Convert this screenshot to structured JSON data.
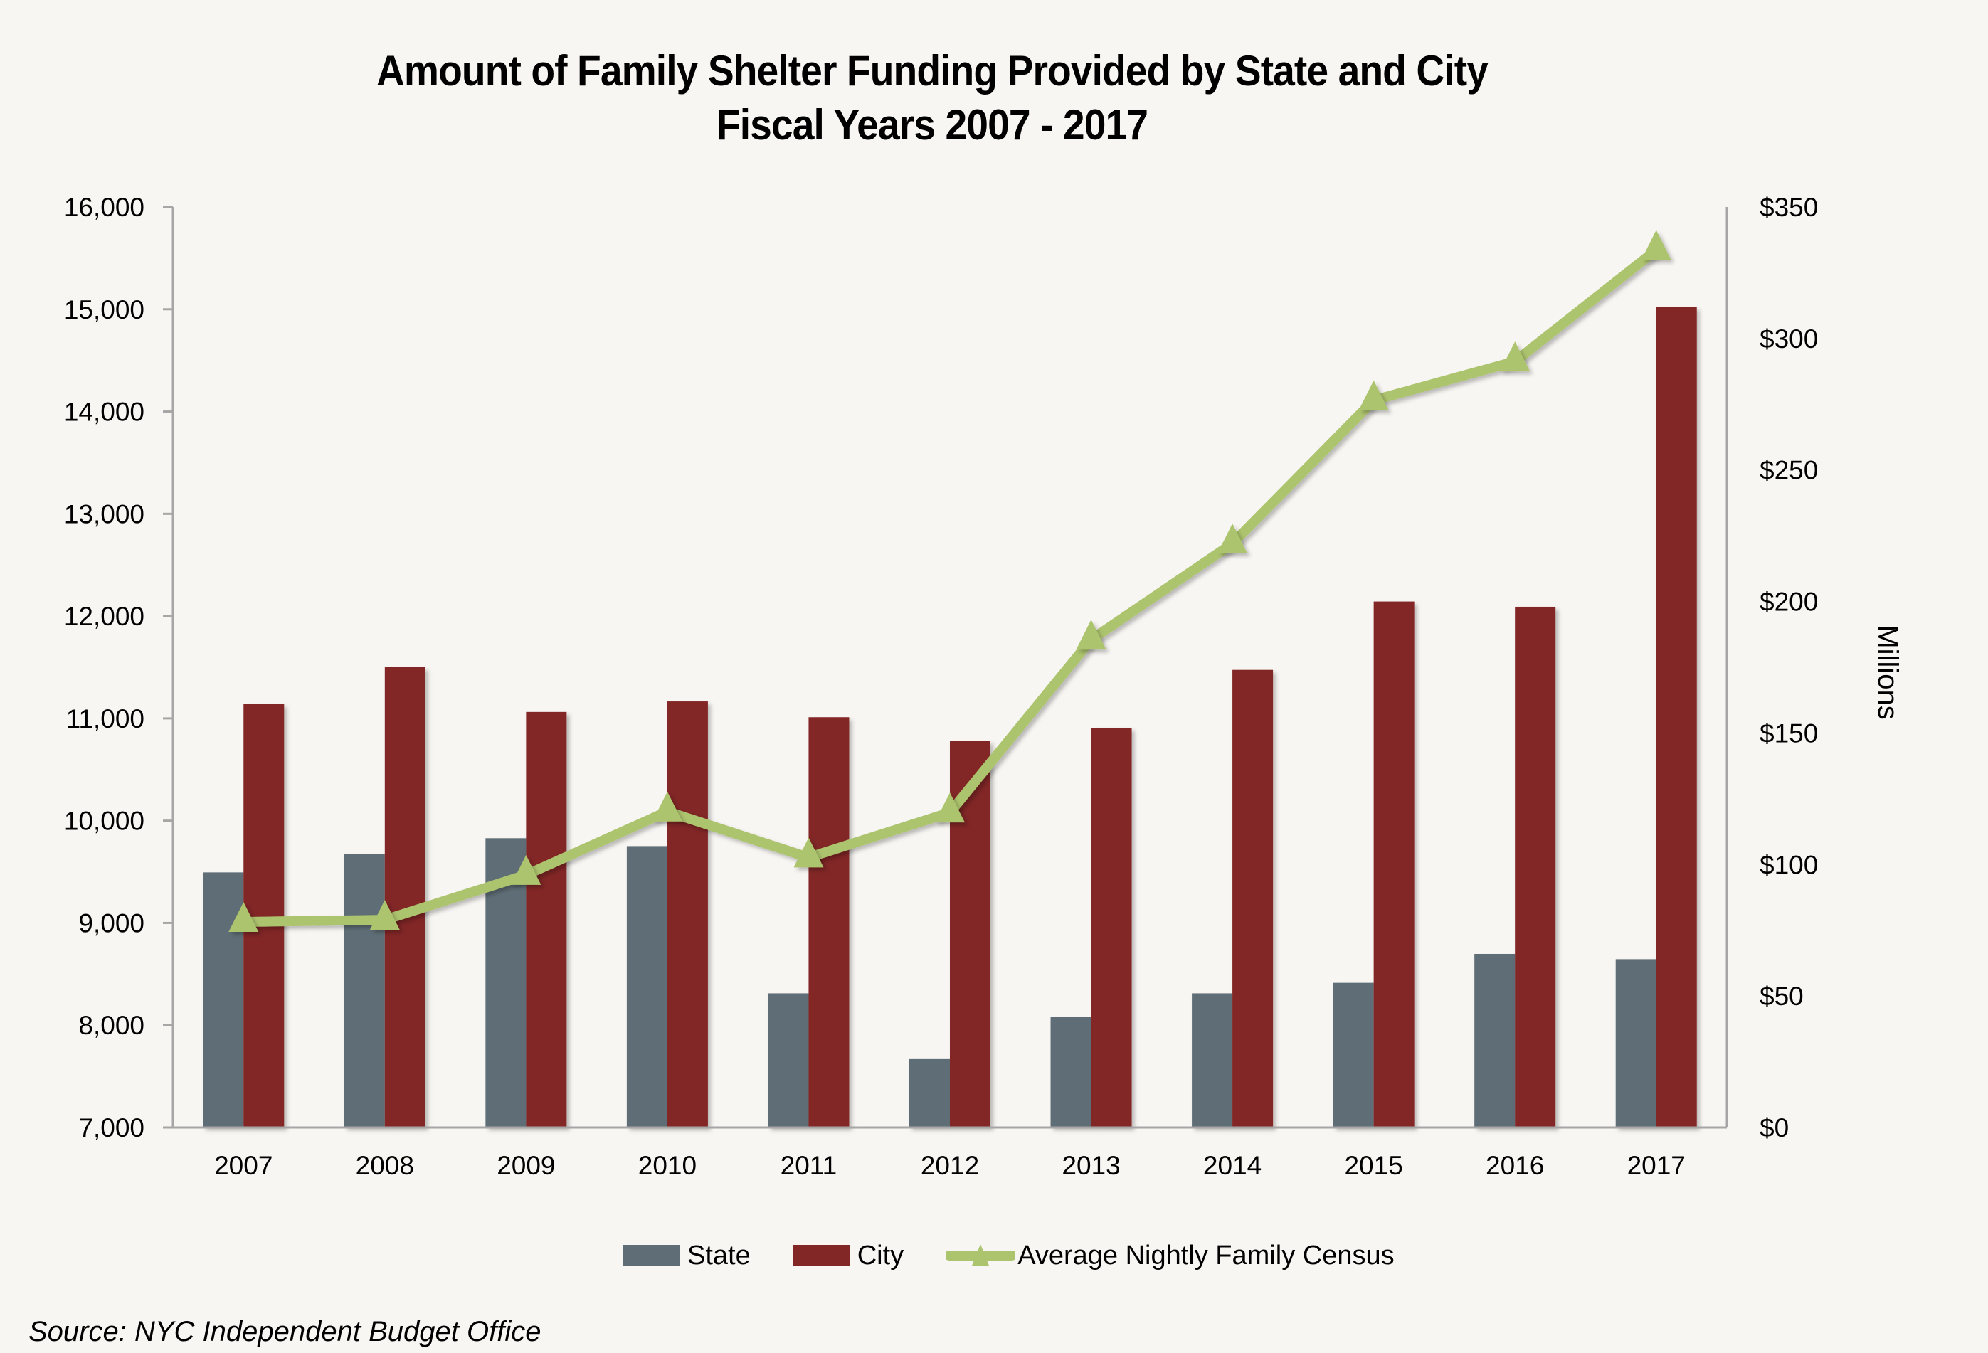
{
  "title": {
    "line1": "Amount of Family Shelter Funding Provided by State and City",
    "line2": "Fiscal Years 2007 - 2017"
  },
  "colors": {
    "background": "#f8f6f3",
    "state": "#5f6e76",
    "city": "#822726",
    "census": "#adc46e",
    "axis": "#a6a6a6"
  },
  "legend": {
    "state": "State",
    "city": "City",
    "census": "Average Nightly Family Census"
  },
  "source": "Source:  NYC Independent Budget Office",
  "chart_data": {
    "type": "bar",
    "title": "Amount of Family Shelter Funding Provided by State and City\nFiscal Years 2007 - 2017",
    "categories": [
      "2007",
      "2008",
      "2009",
      "2010",
      "2011",
      "2012",
      "2013",
      "2014",
      "2015",
      "2016",
      "2017"
    ],
    "series": [
      {
        "name": "State",
        "type": "bar",
        "axis": "right",
        "values": [
          97,
          104,
          110,
          107,
          51,
          26,
          42,
          51,
          55,
          66,
          64
        ]
      },
      {
        "name": "City",
        "type": "bar",
        "axis": "right",
        "values": [
          161,
          175,
          158,
          162,
          156,
          147,
          152,
          174,
          200,
          198,
          312
        ]
      },
      {
        "name": "Average Nightly Family Census",
        "type": "line",
        "marker": "triangle",
        "axis": "left",
        "values": [
          9010,
          9030,
          9470,
          10090,
          9640,
          10080,
          11770,
          12710,
          14110,
          14490,
          15580
        ]
      }
    ],
    "left_axis": {
      "ylim": [
        7000,
        16000
      ],
      "ticks": [
        7000,
        8000,
        9000,
        10000,
        11000,
        12000,
        13000,
        14000,
        15000,
        16000
      ],
      "tick_labels": [
        "7,000",
        "8,000",
        "9,000",
        "10,000",
        "11,000",
        "12,000",
        "13,000",
        "14,000",
        "15,000",
        "16,000"
      ]
    },
    "right_axis": {
      "label": "Millions",
      "ylim": [
        0,
        350
      ],
      "ticks": [
        0,
        50,
        100,
        150,
        200,
        250,
        300,
        350
      ],
      "tick_labels": [
        "$0",
        "$50",
        "$100",
        "$150",
        "$200",
        "$250",
        "$300",
        "$350"
      ]
    },
    "xlabel": "",
    "grid": false,
    "legend_position": "bottom"
  }
}
